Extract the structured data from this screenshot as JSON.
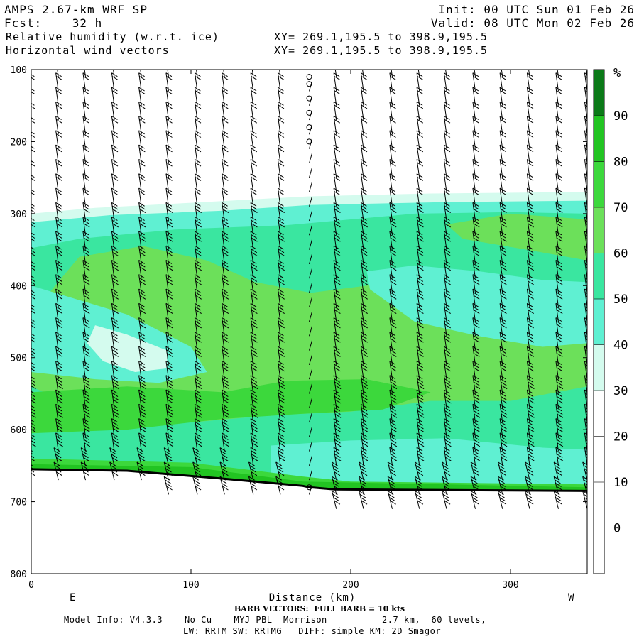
{
  "header": {
    "model": "AMPS 2.67-km WRF SP",
    "fcst_label": "Fcst:",
    "fcst_value": "32 h",
    "field": "Relative humidity (w.r.t. ice)",
    "vectors": "Horizontal wind vectors",
    "init": "Init: 00 UTC Sun 01 Feb 26",
    "valid": "Valid: 08 UTC Mon 02 Feb 26",
    "xy1": "XY= 269.1,195.5 to 398.9,195.5",
    "xy2": "XY= 269.1,195.5 to 398.9,195.5"
  },
  "footer": {
    "barb": "BARB VECTORS:  FULL BARB = 10 kts",
    "model_info": "Model Info: V4.3.3    No Cu    MYJ PBL  Morrison          2.7 km,  60 levels,",
    "physics": "LW: RRTM SW: RRTMG   DIFF: simple KM: 2D Smagor"
  },
  "chart_data": {
    "type": "heatmap",
    "xlabel": "Distance (km)",
    "x_left_label": "E",
    "x_right_label": "W",
    "xlim": [
      0,
      348
    ],
    "ylim": [
      800,
      100
    ],
    "xticks": [
      0,
      100,
      200,
      300
    ],
    "yticks": [
      100,
      200,
      300,
      400,
      500,
      600,
      700,
      800
    ],
    "colorbar": {
      "unit": "%",
      "ticks": [
        0,
        10,
        20,
        30,
        40,
        50,
        60,
        70,
        80,
        90
      ],
      "bands": [
        {
          "range": [
            30,
            40
          ],
          "color": "#d4fbee"
        },
        {
          "range": [
            40,
            50
          ],
          "color": "#5ff0d2"
        },
        {
          "range": [
            50,
            60
          ],
          "color": "#3ae6a0"
        },
        {
          "range": [
            60,
            70
          ],
          "color": "#6ce05a"
        },
        {
          "range": [
            70,
            80
          ],
          "color": "#3cd83c"
        },
        {
          "range": [
            80,
            90
          ],
          "color": "#22c422"
        },
        {
          "range": [
            90,
            100
          ],
          "color": "#0b7a18"
        }
      ]
    },
    "terrain_pressure": [
      [
        0,
        655
      ],
      [
        60,
        657
      ],
      [
        120,
        668
      ],
      [
        170,
        678
      ],
      [
        174,
        680
      ],
      [
        190,
        683
      ],
      [
        348,
        685
      ]
    ],
    "rh_regions": [
      {
        "level": 30,
        "points": [
          [
            0,
            300
          ],
          [
            40,
            292
          ],
          [
            100,
            285
          ],
          [
            174,
            276
          ],
          [
            250,
            272
          ],
          [
            348,
            270
          ],
          [
            348,
            680
          ],
          [
            0,
            652
          ]
        ]
      },
      {
        "level": 40,
        "points": [
          [
            0,
            312
          ],
          [
            50,
            302
          ],
          [
            120,
            296
          ],
          [
            174,
            288
          ],
          [
            260,
            284
          ],
          [
            348,
            282
          ],
          [
            348,
            680
          ],
          [
            0,
            652
          ]
        ]
      },
      {
        "level": 50,
        "points": [
          [
            0,
            348
          ],
          [
            30,
            335
          ],
          [
            90,
            322
          ],
          [
            160,
            316
          ],
          [
            240,
            300
          ],
          [
            300,
            298
          ],
          [
            348,
            300
          ],
          [
            348,
            680
          ],
          [
            0,
            652
          ]
        ]
      },
      {
        "level": 60,
        "points": [
          [
            30,
            360
          ],
          [
            70,
            345
          ],
          [
            110,
            365
          ],
          [
            140,
            395
          ],
          [
            175,
            410
          ],
          [
            210,
            400
          ],
          [
            250,
            390
          ],
          [
            300,
            420
          ],
          [
            348,
            440
          ],
          [
            348,
            540
          ],
          [
            300,
            560
          ],
          [
            250,
            560
          ],
          [
            200,
            575
          ],
          [
            150,
            580
          ],
          [
            100,
            590
          ],
          [
            60,
            575
          ],
          [
            20,
            560
          ],
          [
            0,
            540
          ],
          [
            0,
            440
          ]
        ]
      },
      {
        "level": 60,
        "points": [
          [
            260,
            315
          ],
          [
            300,
            300
          ],
          [
            348,
            308
          ],
          [
            348,
            365
          ],
          [
            310,
            350
          ],
          [
            270,
            335
          ]
        ]
      },
      {
        "level": 40,
        "points": [
          [
            0,
            400
          ],
          [
            30,
            420
          ],
          [
            60,
            440
          ],
          [
            100,
            485
          ],
          [
            110,
            520
          ],
          [
            80,
            535
          ],
          [
            40,
            530
          ],
          [
            0,
            520
          ]
        ]
      },
      {
        "level": 30,
        "points": [
          [
            40,
            455
          ],
          [
            60,
            468
          ],
          [
            85,
            490
          ],
          [
            85,
            515
          ],
          [
            65,
            520
          ],
          [
            45,
            505
          ],
          [
            35,
            480
          ]
        ]
      },
      {
        "level": 40,
        "points": [
          [
            210,
            380
          ],
          [
            240,
            372
          ],
          [
            280,
            380
          ],
          [
            320,
            392
          ],
          [
            348,
            395
          ],
          [
            348,
            480
          ],
          [
            320,
            485
          ],
          [
            280,
            470
          ],
          [
            240,
            450
          ],
          [
            212,
            405
          ]
        ]
      },
      {
        "level": 70,
        "points": [
          [
            0,
            548
          ],
          [
            60,
            540
          ],
          [
            120,
            548
          ],
          [
            160,
            532
          ],
          [
            210,
            530
          ],
          [
            250,
            548
          ],
          [
            220,
            572
          ],
          [
            170,
            578
          ],
          [
            120,
            585
          ],
          [
            60,
            600
          ],
          [
            0,
            605
          ]
        ]
      },
      {
        "level": 50,
        "points": [
          [
            0,
            615
          ],
          [
            60,
            610
          ],
          [
            120,
            598
          ],
          [
            180,
            600
          ],
          [
            240,
            598
          ],
          [
            300,
            605
          ],
          [
            348,
            610
          ],
          [
            348,
            680
          ],
          [
            0,
            652
          ]
        ]
      },
      {
        "level": 40,
        "points": [
          [
            150,
            622
          ],
          [
            200,
            615
          ],
          [
            260,
            612
          ],
          [
            320,
            625
          ],
          [
            348,
            628
          ],
          [
            348,
            678
          ],
          [
            150,
            672
          ]
        ]
      },
      {
        "level": 70,
        "points": [
          [
            0,
            640
          ],
          [
            100,
            646
          ],
          [
            170,
            665
          ],
          [
            200,
            672
          ],
          [
            348,
            676
          ],
          [
            348,
            682
          ],
          [
            190,
            681
          ],
          [
            170,
            676
          ],
          [
            120,
            666
          ],
          [
            60,
            656
          ],
          [
            0,
            653
          ]
        ]
      },
      {
        "level": 80,
        "points": [
          [
            0,
            648
          ],
          [
            100,
            652
          ],
          [
            170,
            672
          ],
          [
            348,
            680
          ],
          [
            348,
            684
          ],
          [
            190,
            683
          ],
          [
            170,
            678
          ],
          [
            60,
            657
          ],
          [
            0,
            655
          ]
        ]
      }
    ],
    "barb_columns_km": [
      0,
      17,
      34,
      52,
      69,
      86,
      104,
      121,
      139,
      156,
      174,
      191,
      208,
      226,
      243,
      260,
      278,
      295,
      312,
      330,
      348
    ],
    "barb_levels_hpa": [
      110,
      130,
      150,
      170,
      190,
      210,
      230,
      250,
      270,
      290,
      310,
      330,
      350,
      370,
      390,
      410,
      430,
      450,
      470,
      490,
      510,
      530,
      550,
      570,
      590,
      610,
      630,
      650,
      670,
      690,
      710
    ],
    "calm_points": [
      [
        174,
        110
      ],
      [
        174,
        120
      ],
      [
        174,
        140
      ],
      [
        174,
        160
      ],
      [
        174,
        180
      ],
      [
        174,
        200
      ],
      [
        174,
        680
      ]
    ]
  }
}
